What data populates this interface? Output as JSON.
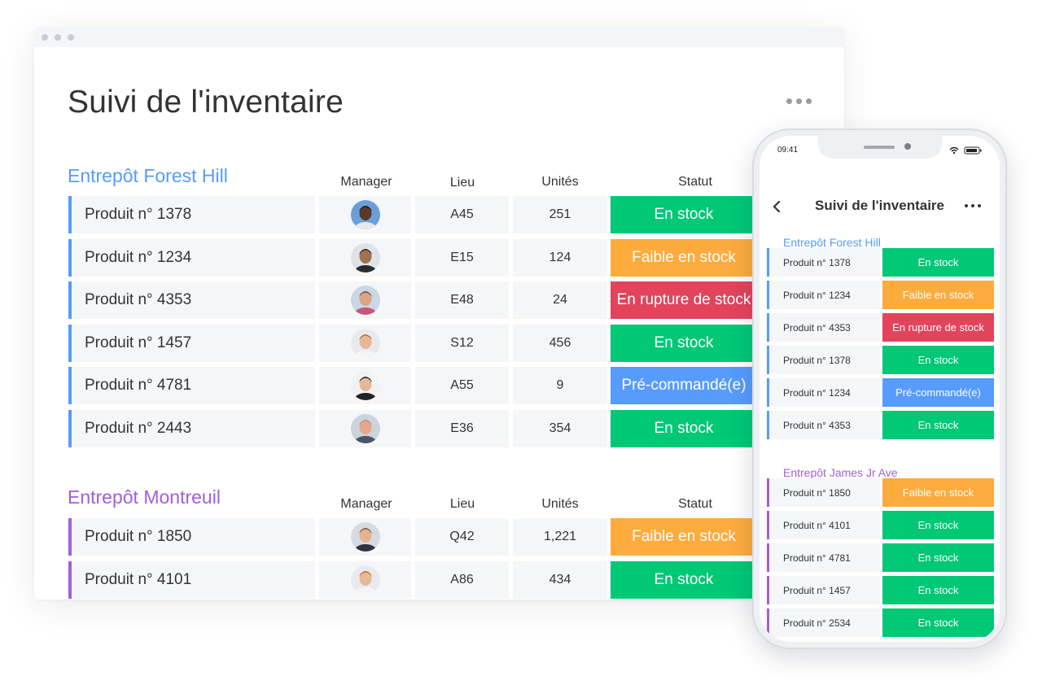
{
  "window": {
    "title": "Suivi de l'inventaire",
    "columns": {
      "manager": "Manager",
      "lieu": "Lieu",
      "unites": "Unités",
      "statut": "Statut"
    },
    "groups": [
      {
        "title": "Entrepôt Forest Hill",
        "color": "#579bfc",
        "rows": [
          {
            "name": "Produit n° 1378",
            "lieu": "A45",
            "units": "251",
            "status": "En stock",
            "status_color": "#00c875",
            "avatar_icon": "manager-avatar-1"
          },
          {
            "name": "Produit n° 1234",
            "lieu": "E15",
            "units": "124",
            "status": "Faible en stock",
            "status_color": "#fdab3d",
            "avatar_icon": "manager-avatar-2"
          },
          {
            "name": "Produit n° 4353",
            "lieu": "E48",
            "units": "24",
            "status": "En rupture de stock",
            "status_color": "#e2445c",
            "avatar_icon": "manager-avatar-3"
          },
          {
            "name": "Produit n° 1457",
            "lieu": "S12",
            "units": "456",
            "status": "En stock",
            "status_color": "#00c875",
            "avatar_icon": "manager-avatar-4"
          },
          {
            "name": "Produit n° 4781",
            "lieu": "A55",
            "units": "9",
            "status": "Pré-commandé(e)",
            "status_color": "#579bfc",
            "avatar_icon": "manager-avatar-5"
          },
          {
            "name": "Produit n° 2443",
            "lieu": "E36",
            "units": "354",
            "status": "En stock",
            "status_color": "#00c875",
            "avatar_icon": "manager-avatar-6"
          }
        ]
      },
      {
        "title": "Entrepôt Montreuil",
        "color": "#a25ddc",
        "rows": [
          {
            "name": "Produit n° 1850",
            "lieu": "Q42",
            "units": "1,221",
            "status": "Faible en stock",
            "status_color": "#fdab3d",
            "avatar_icon": "manager-avatar-7"
          },
          {
            "name": "Produit n° 4101",
            "lieu": "A86",
            "units": "434",
            "status": "En stock",
            "status_color": "#00c875",
            "avatar_icon": "manager-avatar-4"
          }
        ]
      }
    ]
  },
  "phone": {
    "time": "09:41",
    "title": "Suivi de l'inventaire",
    "groups": [
      {
        "title": "Entrepôt Forest Hill",
        "color": "#579bfc",
        "rows": [
          {
            "name": "Produit n° 1378",
            "status": "En stock",
            "status_color": "#00c875"
          },
          {
            "name": "Produit n° 1234",
            "status": "Faible en stock",
            "status_color": "#fdab3d"
          },
          {
            "name": "Produit n° 4353",
            "status": "En rupture de stock",
            "status_color": "#e2445c"
          },
          {
            "name": "Produit n° 1378",
            "status": "En stock",
            "status_color": "#00c875"
          },
          {
            "name": "Produit n° 1234",
            "status": "Pré-commandé(e)",
            "status_color": "#579bfc"
          },
          {
            "name": "Produit n° 4353",
            "status": "En stock",
            "status_color": "#00c875"
          }
        ]
      },
      {
        "title": "Entrepôt James Jr Ave",
        "color": "#a25ddc",
        "rows": [
          {
            "name": "Produit n° 1850",
            "status": "Faible en stock",
            "status_color": "#fdab3d"
          },
          {
            "name": "Produit n° 4101",
            "status": "En stock",
            "status_color": "#00c875"
          },
          {
            "name": "Produit n° 4781",
            "status": "En stock",
            "status_color": "#00c875"
          },
          {
            "name": "Produit n° 1457",
            "status": "En stock",
            "status_color": "#00c875"
          },
          {
            "name": "Produit n° 2534",
            "status": "En stock",
            "status_color": "#00c875"
          }
        ]
      }
    ]
  }
}
